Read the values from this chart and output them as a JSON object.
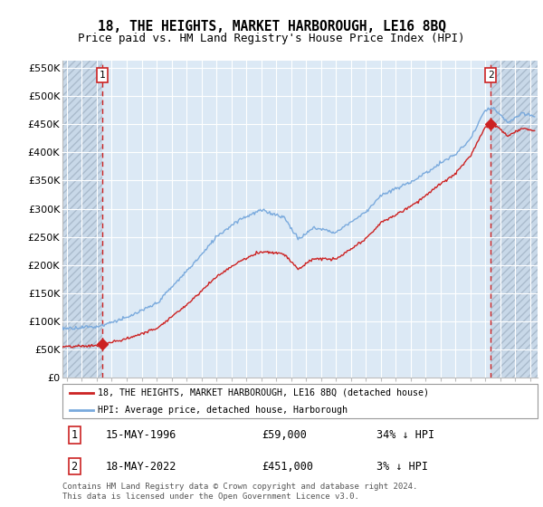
{
  "title": "18, THE HEIGHTS, MARKET HARBOROUGH, LE16 8BQ",
  "subtitle": "Price paid vs. HM Land Registry's House Price Index (HPI)",
  "ylim": [
    0,
    562500
  ],
  "yticks": [
    0,
    50000,
    100000,
    150000,
    200000,
    250000,
    300000,
    350000,
    400000,
    450000,
    500000,
    550000
  ],
  "xlim_start": 1993.7,
  "xlim_end": 2025.5,
  "sale1_date": 1996.37,
  "sale1_price": 59000,
  "sale1_label": "1",
  "sale1_date_str": "15-MAY-1996",
  "sale1_hpi_pct": "34% ↓ HPI",
  "sale2_date": 2022.37,
  "sale2_price": 451000,
  "sale2_label": "2",
  "sale2_date_str": "18-MAY-2022",
  "sale2_hpi_pct": "3% ↓ HPI",
  "legend_line1": "18, THE HEIGHTS, MARKET HARBOROUGH, LE16 8BQ (detached house)",
  "legend_line2": "HPI: Average price, detached house, Harborough",
  "footer": "Contains HM Land Registry data © Crown copyright and database right 2024.\nThis data is licensed under the Open Government Licence v3.0.",
  "hpi_color": "#7aaadd",
  "price_color": "#cc2222",
  "plot_bg": "#dce9f5",
  "hatch_bg": "#c8d8e8",
  "grid_color": "#ffffff",
  "title_fontsize": 10.5,
  "subtitle_fontsize": 9,
  "tick_fontsize": 8
}
